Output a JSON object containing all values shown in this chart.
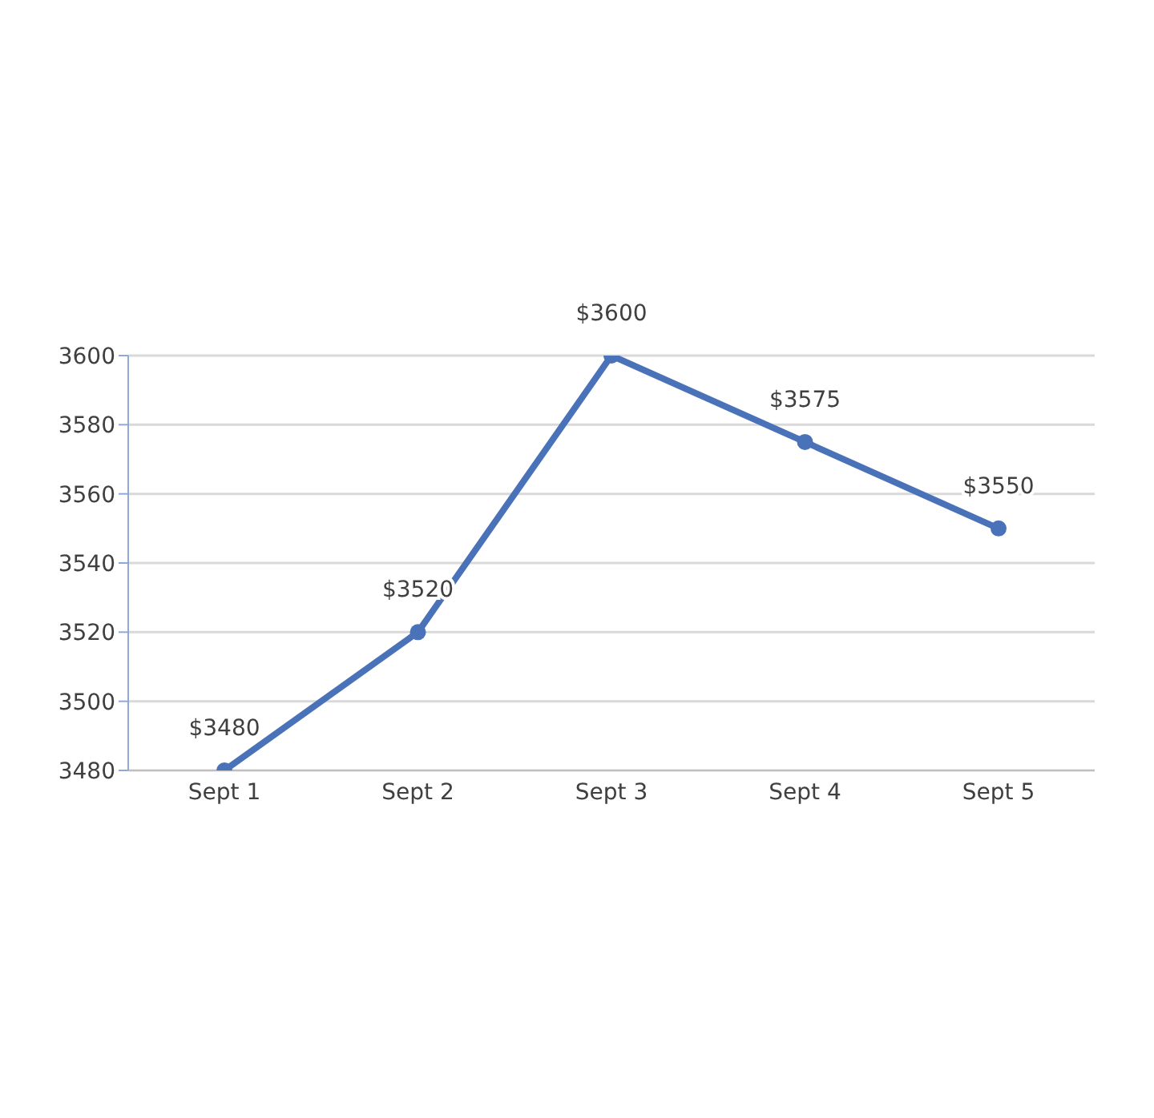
{
  "chart_data": {
    "type": "line",
    "categories": [
      "Sept 1",
      "Sept 2",
      "Sept 3",
      "Sept 4",
      "Sept 5"
    ],
    "series": [
      {
        "color": "#4a72b8",
        "values": [
          3480,
          3520,
          3600,
          3575,
          3550
        ],
        "value_labels": [
          "$3480",
          "$3520",
          "$3600",
          "$3575",
          "$3550"
        ]
      }
    ],
    "ylim": [
      3480,
      3600
    ],
    "yticks": [
      3480,
      3500,
      3520,
      3540,
      3560,
      3580,
      3600
    ],
    "grid": "y",
    "marker": "circle",
    "line_style": "solid",
    "legend": false
  }
}
